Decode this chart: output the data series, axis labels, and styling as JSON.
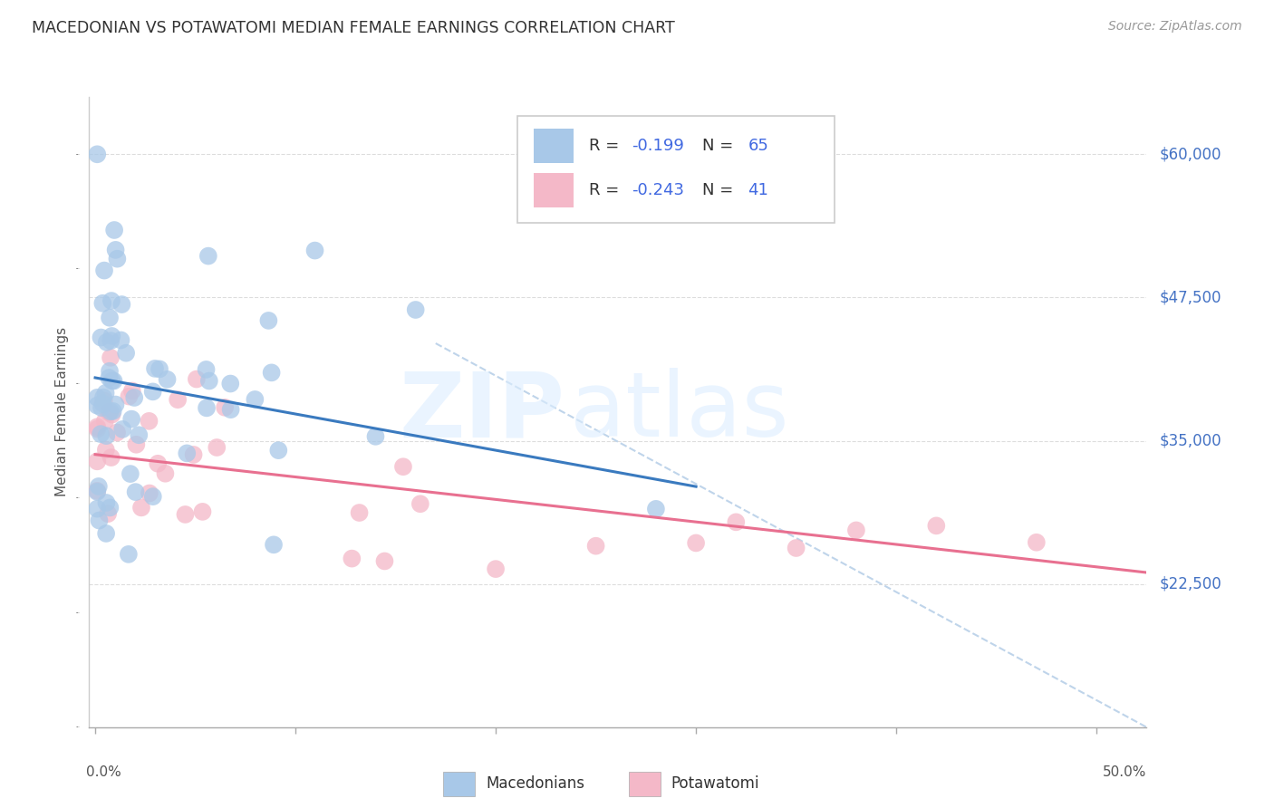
{
  "title": "MACEDONIAN VS POTAWATOMI MEDIAN FEMALE EARNINGS CORRELATION CHART",
  "source": "Source: ZipAtlas.com",
  "ylabel": "Median Female Earnings",
  "ytick_labels": [
    "$22,500",
    "$35,000",
    "$47,500",
    "$60,000"
  ],
  "ytick_values": [
    22500,
    35000,
    47500,
    60000
  ],
  "ymin": 10000,
  "ymax": 65000,
  "xmin": -0.003,
  "xmax": 0.525,
  "blue_color": "#a8c8e8",
  "pink_color": "#f4b8c8",
  "blue_line_color": "#3a7abf",
  "pink_line_color": "#e87090",
  "dashed_line_color": "#b8d0e8",
  "watermark_zip": "ZIP",
  "watermark_atlas": "atlas",
  "macedonians_label": "Macedonians",
  "potawatomi_label": "Potawatomi",
  "blue_line_x": [
    0.0,
    0.3
  ],
  "blue_line_y": [
    40500,
    31000
  ],
  "pink_line_x": [
    0.0,
    0.525
  ],
  "pink_line_y": [
    33800,
    23500
  ],
  "dash_line_x": [
    0.17,
    0.525
  ],
  "dash_line_y": [
    43500,
    10000
  ]
}
